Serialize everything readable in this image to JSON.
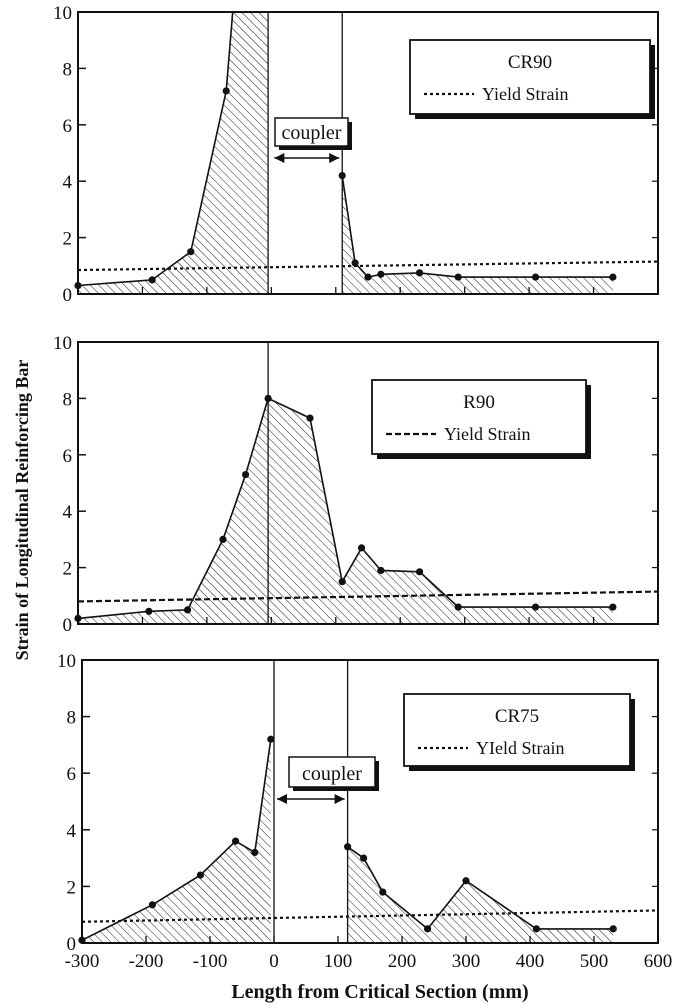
{
  "figure": {
    "ylabel": "Strain of Longitudinal Reinforcing Bar",
    "xlabel": "Length from Critical Section (mm)"
  },
  "colors": {
    "ink": "#111111",
    "background": "#ffffff"
  },
  "chart_data": [
    {
      "type": "line",
      "title": "CR90",
      "legend": {
        "label": "Yield Strain",
        "line": "dotted",
        "position": "top-right"
      },
      "annotation": {
        "text": "coupler",
        "x_start": 0,
        "x_end": 110
      },
      "xlim": [
        -300,
        600
      ],
      "ylim": [
        0,
        10
      ],
      "yticks": [
        0,
        2,
        4,
        6,
        8,
        10
      ],
      "vertical_lines": [
        -5,
        110
      ],
      "yield_line": {
        "x": [
          -300,
          600
        ],
        "y": [
          0.85,
          1.15
        ]
      },
      "series": [
        {
          "x": [
            -300,
            -185,
            -125,
            -70,
            -60,
            -5
          ],
          "y": [
            0.3,
            0.5,
            1.5,
            7.2,
            10,
            10
          ],
          "marker_count": 4
        },
        {
          "x": [
            110,
            130,
            150,
            170,
            230,
            290,
            410,
            530
          ],
          "y": [
            4.2,
            1.1,
            0.6,
            0.7,
            0.75,
            0.6,
            0.6,
            0.6
          ]
        }
      ]
    },
    {
      "type": "line",
      "title": "R90",
      "legend": {
        "label": "Yield Strain",
        "line": "dashed",
        "position": "top-right"
      },
      "xlim": [
        -300,
        600
      ],
      "ylim": [
        0,
        10
      ],
      "yticks": [
        0,
        2,
        4,
        6,
        8,
        10
      ],
      "vertical_lines": [
        -5
      ],
      "yield_line": {
        "x": [
          -300,
          600
        ],
        "y": [
          0.8,
          1.15
        ]
      },
      "series": [
        {
          "x": [
            -300,
            -190,
            -130,
            -75,
            -40,
            -5,
            60,
            110,
            140,
            170,
            230,
            290,
            410,
            530
          ],
          "y": [
            0.2,
            0.45,
            0.5,
            3.0,
            5.3,
            8.0,
            7.3,
            1.5,
            2.7,
            1.9,
            1.85,
            0.6,
            0.6,
            0.6
          ]
        }
      ]
    },
    {
      "type": "line",
      "title": "CR75",
      "legend": {
        "label": "YIeld Strain",
        "line": "dotted",
        "position": "top-right"
      },
      "annotation": {
        "text": "coupler",
        "x_start": 0,
        "x_end": 115
      },
      "xlabel": "Length from Critical Section (mm)",
      "xlim": [
        -300,
        600
      ],
      "xticks": [
        -300,
        -200,
        -100,
        0,
        100,
        200,
        300,
        400,
        500,
        600
      ],
      "ylim": [
        0,
        10
      ],
      "yticks": [
        0,
        2,
        4,
        6,
        8,
        10
      ],
      "vertical_lines": [
        0,
        115
      ],
      "yield_line": {
        "x": [
          -300,
          600
        ],
        "y": [
          0.75,
          1.15
        ]
      },
      "series": [
        {
          "x": [
            -300,
            -190,
            -115,
            -60,
            -30,
            -5
          ],
          "y": [
            0.1,
            1.35,
            2.4,
            3.6,
            3.2,
            7.2
          ]
        },
        {
          "x": [
            115,
            140,
            170,
            240,
            300,
            410,
            530
          ],
          "y": [
            3.4,
            3.0,
            1.8,
            0.5,
            2.2,
            0.5,
            0.5
          ]
        }
      ]
    }
  ]
}
